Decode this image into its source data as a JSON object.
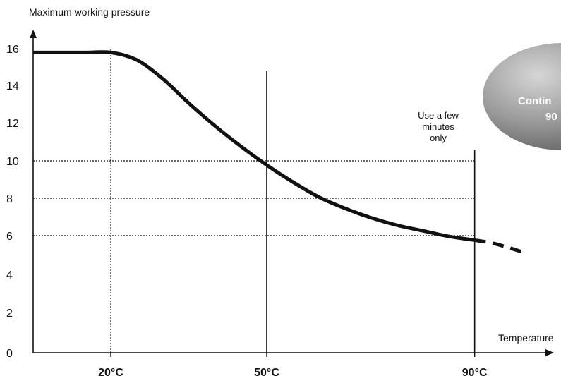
{
  "chart_data": {
    "type": "line",
    "ylabel": "Maximum working pressure",
    "xlabel": "Temperature",
    "ylim": [
      0,
      16
    ],
    "yticks": [
      "0",
      "2",
      "4",
      "6",
      "8",
      "10",
      "12",
      "14",
      "16"
    ],
    "xticks": [
      {
        "value": 20,
        "label": "20°C"
      },
      {
        "value": 50,
        "label": "50°C"
      },
      {
        "value": 90,
        "label": "90°C"
      }
    ],
    "series": [
      {
        "x": [
          5,
          15,
          20,
          25,
          30,
          35,
          40,
          45,
          50,
          55,
          60,
          65,
          70,
          75,
          80,
          85,
          90
        ],
        "y": [
          16,
          16,
          16,
          15.6,
          14.6,
          13.3,
          12.1,
          11.0,
          10.0,
          9.1,
          8.3,
          7.7,
          7.2,
          6.8,
          6.5,
          6.2,
          6.0
        ]
      },
      {
        "style": "dashed",
        "x": [
          90,
          94,
          100
        ],
        "y": [
          6.0,
          5.8,
          5.3
        ]
      }
    ],
    "reference_lines_y": [
      6,
      8,
      10
    ],
    "reference_lines_x": [
      20,
      50,
      90
    ],
    "annotations": [
      {
        "text_lines": [
          "Use a few",
          "minutes",
          "only"
        ]
      },
      {
        "text_lines": [
          "Contin",
          "90"
        ]
      }
    ]
  }
}
